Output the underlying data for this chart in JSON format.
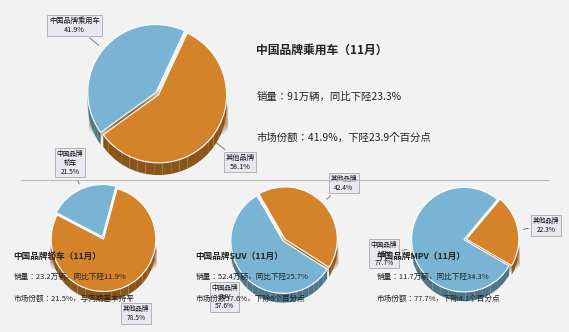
{
  "bg_color": "#f2f2f2",
  "pie_blue": "#7ab4d4",
  "pie_orange": "#d4832a",
  "pie_shadow": "#8B4513",
  "label_fc": "#e8e8f0",
  "label_ec": "#999999",
  "top_pie": {
    "values": [
      41.9,
      58.1
    ],
    "colors": [
      "#7ab4d4",
      "#d4832a"
    ],
    "explode": [
      0.05,
      0.0
    ],
    "startangle": 65,
    "label0": "中国品牌乘用车\n41.9%",
    "label1": "其他品牌\n58.1%"
  },
  "top_text_line1": "中国品牌乘用车（11月）",
  "top_text_line2": "销量：91万辆，同比下陉23.3%",
  "top_text_line3": "市场份额：41.9%，下陉23.9个百分点",
  "bottom_pies": [
    {
      "values": [
        21.5,
        78.5
      ],
      "colors": [
        "#7ab4d4",
        "#d4832a"
      ],
      "explode": [
        0.05,
        0.0
      ],
      "startangle": 75,
      "label0": "中国品牌\n轿车\n21.5%",
      "label1": "其他品牌\n78.5%",
      "text1": "中国品牌轿车（11月）",
      "text2": "销量：23.2万辆，同比下陉11.9%",
      "text3": "市场份额：21.5%，与同期基本持平"
    },
    {
      "values": [
        57.6,
        42.4
      ],
      "colors": [
        "#7ab4d4",
        "#d4832a"
      ],
      "explode": [
        0.05,
        0.0
      ],
      "startangle": 120,
      "label0": "中国品牌\nSUV\n57.6%",
      "label1": "其他品牌\n42.4%",
      "text1": "中国品牌SUV（11月）",
      "text2": "销量：52.4万辆，同比下陉25.7%",
      "text3": "市场份颖57.6%，下除6个百分点"
    },
    {
      "values": [
        77.7,
        22.3
      ],
      "colors": [
        "#7ab4d4",
        "#d4832a"
      ],
      "explode": [
        0.05,
        0.0
      ],
      "startangle": 50,
      "label0": "中国品牌\nMPV\n77.7%",
      "label1": "其他品牌\n22.3%",
      "text1": "中国品牌MPV（11月）",
      "text2": "销量：11.7万辆，同比下陉34.3%",
      "text3": "市场份额：77.7%，下除4.1个百分点"
    }
  ]
}
